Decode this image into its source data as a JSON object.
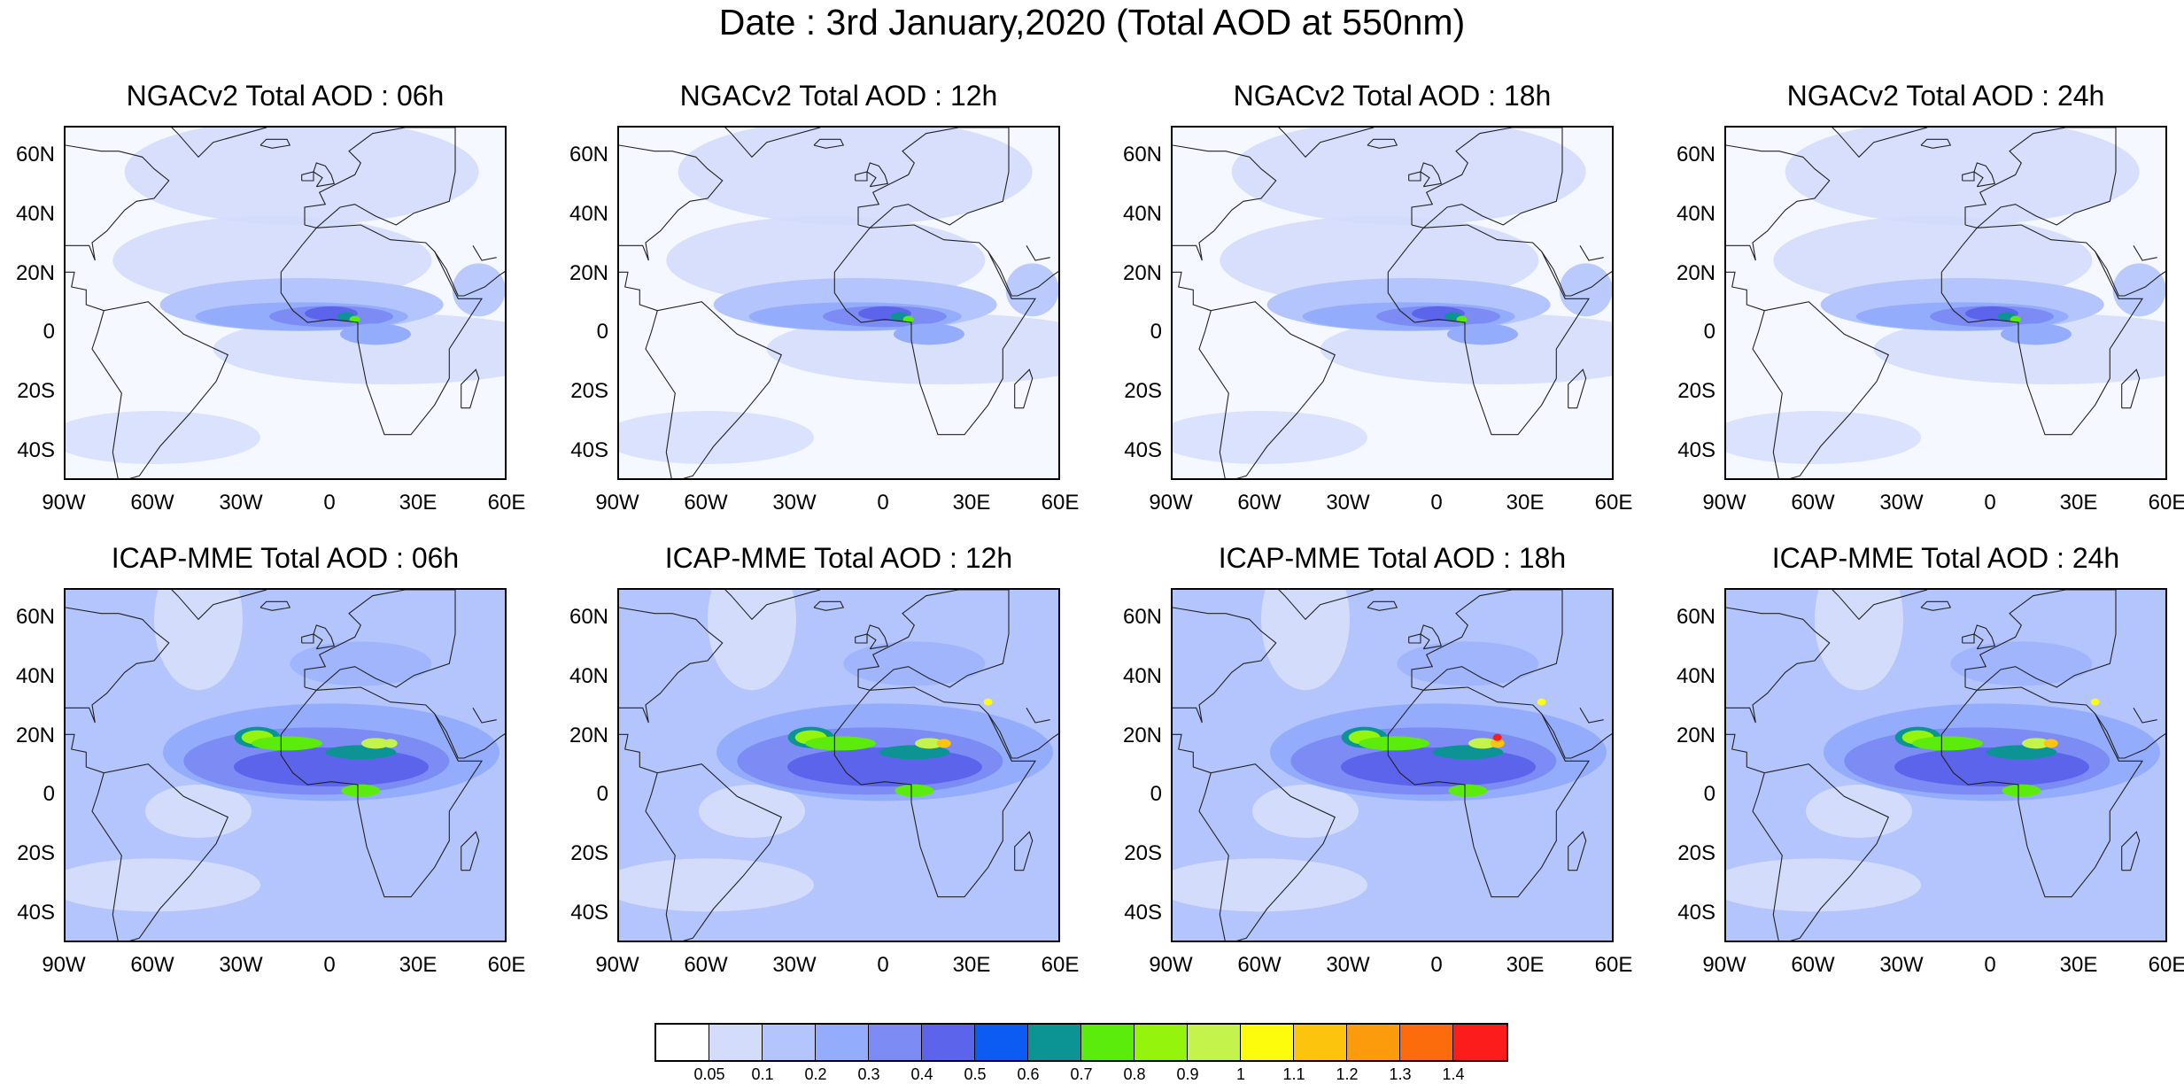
{
  "title": "Date : 3rd January,2020 (Total AOD at 550nm)",
  "panels": [
    {
      "title": "NGACv2 Total AOD : 06h",
      "model": "NGACv2",
      "hour": "06h"
    },
    {
      "title": "NGACv2 Total AOD : 12h",
      "model": "NGACv2",
      "hour": "12h"
    },
    {
      "title": "NGACv2 Total AOD : 18h",
      "model": "NGACv2",
      "hour": "18h"
    },
    {
      "title": "NGACv2 Total AOD : 24h",
      "model": "NGACv2",
      "hour": "24h"
    },
    {
      "title": "ICAP-MME Total AOD : 06h",
      "model": "ICAP-MME",
      "hour": "06h"
    },
    {
      "title": "ICAP-MME Total AOD : 12h",
      "model": "ICAP-MME",
      "hour": "12h"
    },
    {
      "title": "ICAP-MME Total AOD : 18h",
      "model": "ICAP-MME",
      "hour": "18h"
    },
    {
      "title": "ICAP-MME Total AOD : 24h",
      "model": "ICAP-MME",
      "hour": "24h"
    }
  ],
  "lat_ticks": [
    "60N",
    "40N",
    "20N",
    "0",
    "20S",
    "40S"
  ],
  "lon_ticks": [
    "90W",
    "60W",
    "30W",
    "0",
    "30E",
    "60E"
  ],
  "colorbar": {
    "colors": [
      "#ffffff",
      "#d4dcfc",
      "#b4c4fc",
      "#94acfc",
      "#7c8cf4",
      "#5c64ec",
      "#0c5cf4",
      "#0c9494",
      "#5cec0c",
      "#94f40c",
      "#c4f44c",
      "#fcfc0c",
      "#fcc40c",
      "#fc9c0c",
      "#fc6c0c",
      "#fc1c1c"
    ],
    "labels": [
      "0.05",
      "0.1",
      "0.2",
      "0.3",
      "0.4",
      "0.5",
      "0.6",
      "0.7",
      "0.8",
      "0.9",
      "1",
      "1.1",
      "1.2",
      "1.3",
      "1.4"
    ]
  }
}
